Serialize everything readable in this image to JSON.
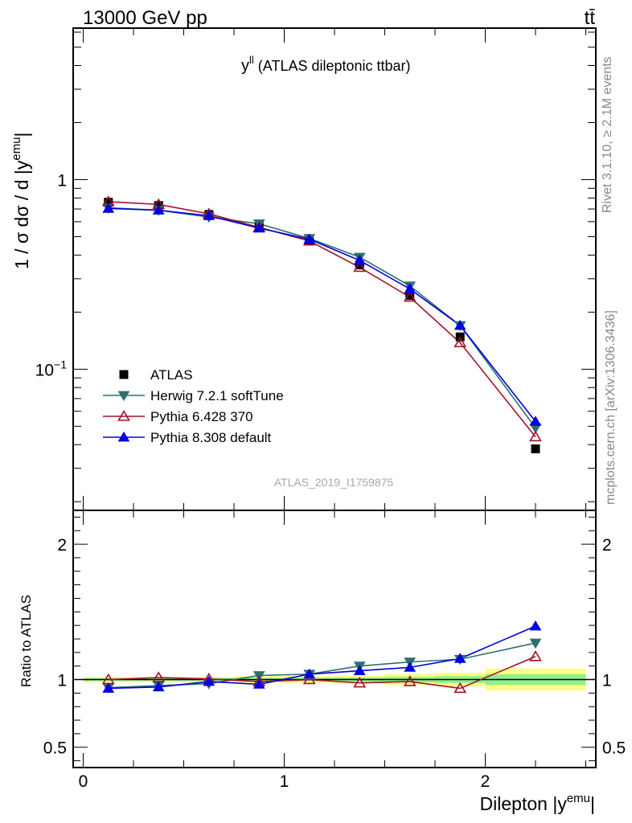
{
  "header": {
    "energy_label": "13000 GeV pp",
    "process_label": "tt̄",
    "side_top": "Rivet 3.1.10, ≥ 2.1M events",
    "side_bottom": "mcplots.cern.ch [arXiv:1306.3436]",
    "analysis_id": "ATLAS_2019_I1759875"
  },
  "chart_data": [
    {
      "type": "line",
      "title": "y^{ll} (ATLAS dileptonic ttbar)",
      "title_main": "y",
      "title_sup": "ll",
      "title_rest": " (ATLAS dileptonic ttbar)",
      "ylabel": "1 / σ dσ / d |y^{emu}|",
      "ylabel_main": "1 / σ  dσ / d |y",
      "ylabel_sup": "emu",
      "ylabel_end": "|",
      "yscale": "log",
      "ylim": [
        0.018,
        6.3
      ],
      "xlim": [
        -0.05,
        2.55
      ],
      "ytick_labels": [
        {
          "value": 1,
          "label": "1"
        },
        {
          "value": 0.1,
          "label": "10",
          "sup": "−1"
        }
      ],
      "legend_position": "bottom-left",
      "x": [
        0.125,
        0.375,
        0.625,
        0.875,
        1.125,
        1.375,
        1.625,
        1.875,
        2.25
      ],
      "series": [
        {
          "name": "ATLAS",
          "color": "#000000",
          "marker": "square",
          "values": [
            0.76,
            0.73,
            0.655,
            0.57,
            0.475,
            0.355,
            0.245,
            0.148,
            0.038
          ],
          "errors": [
            0.01,
            0.01,
            0.01,
            0.01,
            0.008,
            0.006,
            0.005,
            0.004,
            0.002
          ]
        },
        {
          "name": "Herwig 7.2.1 softTune",
          "color": "#2e6f6f",
          "marker": "triangle-down",
          "values": [
            0.71,
            0.69,
            0.635,
            0.585,
            0.49,
            0.39,
            0.275,
            0.17,
            0.049
          ]
        },
        {
          "name": "Pythia 6.428 370",
          "color": "#a01228",
          "marker": "triangle-up-open",
          "values": [
            0.765,
            0.74,
            0.66,
            0.56,
            0.475,
            0.345,
            0.24,
            0.138,
            0.044
          ]
        },
        {
          "name": "Pythia 8.308 default",
          "color": "#0000e0",
          "marker": "triangle-up",
          "values": [
            0.705,
            0.69,
            0.645,
            0.555,
            0.485,
            0.375,
            0.265,
            0.17,
            0.053
          ]
        }
      ]
    },
    {
      "type": "line",
      "ylabel": "Ratio to ATLAS",
      "xlabel": "Dilepton |y^{emu}|",
      "xlabel_main": "Dilepton |y",
      "xlabel_sup": "emu",
      "xlabel_end": "|",
      "ylim": [
        0.35,
        2.25
      ],
      "xlim": [
        -0.05,
        2.55
      ],
      "ytick_labels": [
        {
          "value": 2,
          "label": "2"
        },
        {
          "value": 1,
          "label": "1"
        },
        {
          "value": 0.5,
          "label": "0.5"
        }
      ],
      "xtick_labels": [
        {
          "value": 0,
          "label": "0"
        },
        {
          "value": 1,
          "label": "1"
        },
        {
          "value": 2,
          "label": "2"
        }
      ],
      "x": [
        0.125,
        0.375,
        0.625,
        0.875,
        1.125,
        1.375,
        1.625,
        1.875,
        2.25
      ],
      "bins": [
        [
          0,
          0.25
        ],
        [
          0.25,
          0.5
        ],
        [
          0.5,
          0.75
        ],
        [
          0.75,
          1.0
        ],
        [
          1.0,
          1.25
        ],
        [
          1.25,
          1.5
        ],
        [
          1.5,
          1.75
        ],
        [
          1.75,
          2.0
        ],
        [
          2.0,
          2.5
        ]
      ],
      "band_stat": [
        0.01,
        0.01,
        0.01,
        0.012,
        0.012,
        0.015,
        0.02,
        0.025,
        0.04
      ],
      "band_total": [
        0.02,
        0.02,
        0.02,
        0.025,
        0.025,
        0.03,
        0.04,
        0.05,
        0.08
      ],
      "band_colors": {
        "stat": "#8ef08e",
        "total": "#ffff80"
      },
      "series": [
        {
          "name": "Herwig 7.2.1 softTune",
          "color": "#2e6f6f",
          "marker": "triangle-down",
          "values": [
            0.94,
            0.955,
            0.97,
            1.03,
            1.04,
            1.1,
            1.13,
            1.15,
            1.27
          ]
        },
        {
          "name": "Pythia 6.428 370",
          "color": "#a01228",
          "marker": "triangle-up-open",
          "values": [
            1.0,
            1.015,
            1.005,
            0.985,
            1.0,
            0.975,
            0.985,
            0.935,
            1.17
          ]
        },
        {
          "name": "Pythia 8.308 default",
          "color": "#0000e0",
          "marker": "triangle-up",
          "values": [
            0.935,
            0.945,
            0.985,
            0.965,
            1.04,
            1.065,
            1.09,
            1.155,
            1.395
          ]
        }
      ]
    }
  ]
}
